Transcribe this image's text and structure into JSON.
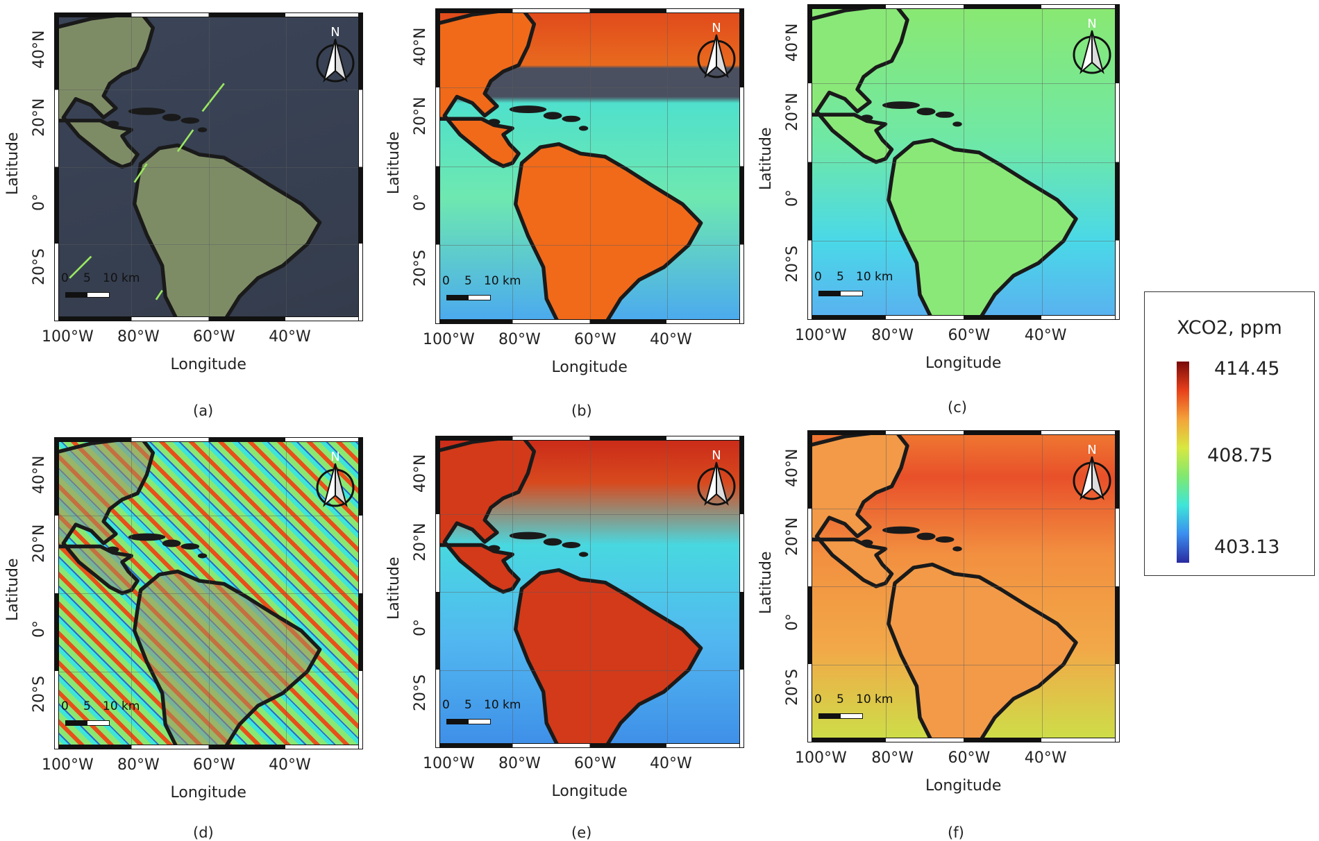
{
  "axes": {
    "xlabel": "Longitude",
    "ylabel": "Latitude",
    "lon_ticks": [
      "100°W",
      "80°W",
      "60°W",
      "40°W"
    ],
    "lat_ticks": [
      "40°N",
      "20°N",
      "0°",
      "20°S"
    ]
  },
  "north_label": "N",
  "scale_bar": {
    "labels": [
      "0",
      "5",
      "10 km"
    ]
  },
  "panels": [
    {
      "caption": "(a)",
      "style": "satellite imagery with sparse XCO2 swaths",
      "bg": "#3a4150",
      "land": "#7d8a64"
    },
    {
      "caption": "(b)",
      "style": "XCO2 map with data gaps",
      "bg": "#55e0d0",
      "land": "#e86a1e"
    },
    {
      "caption": "(c)",
      "style": "XCO2 map",
      "bg": "#55e0d0",
      "land": "#7fe870"
    },
    {
      "caption": "(d)",
      "style": "striped satellite XCO2 retrievals",
      "bg": "#8ae872",
      "land": "#c98a5a"
    },
    {
      "caption": "(e)",
      "style": "XCO2 map",
      "bg": "#4fd6e8",
      "land": "#d33a1a"
    },
    {
      "caption": "(f)",
      "style": "XCO2 map",
      "bg": "#f2a240",
      "land": "#f08a3c"
    }
  ],
  "legend": {
    "title": "XCO2, ppm",
    "max": "414.45",
    "mid": "408.75",
    "min": "403.13",
    "colors": [
      "#7a0a0a",
      "#e8401a",
      "#f4a23a",
      "#d8e840",
      "#7fe870",
      "#3ee6d8",
      "#3a8ef0",
      "#2a2aa0"
    ]
  }
}
